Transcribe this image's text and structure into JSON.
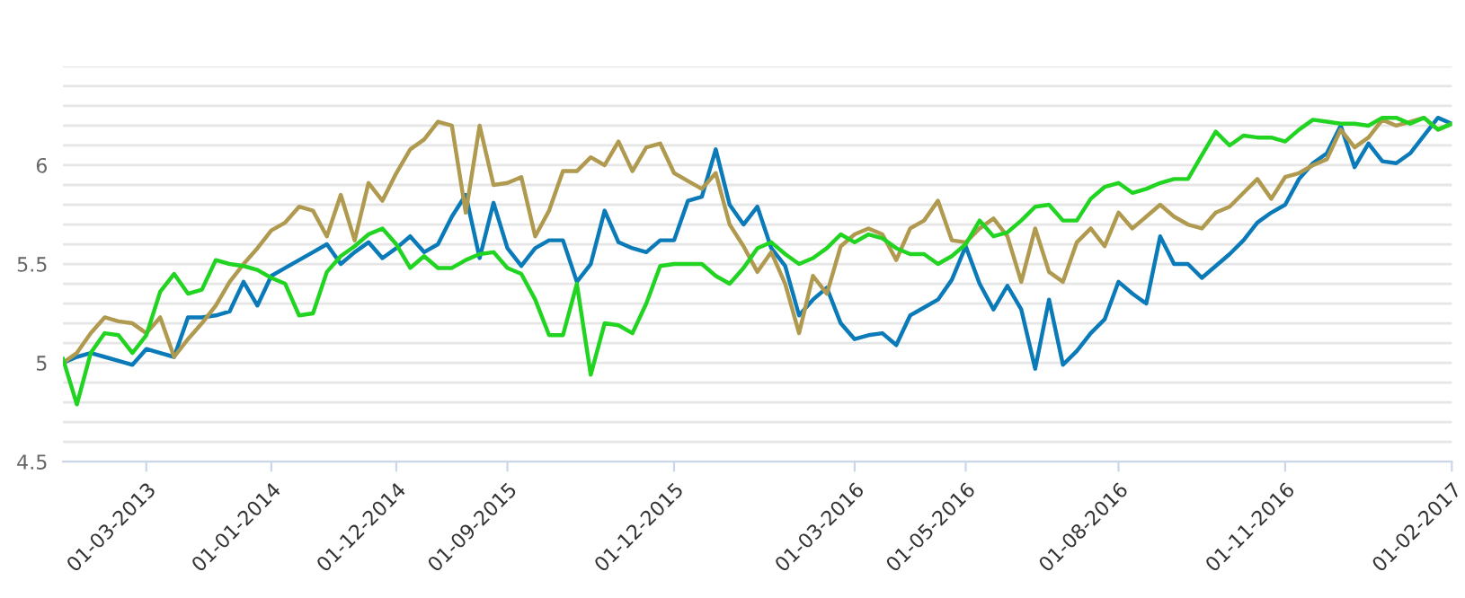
{
  "chart_data": {
    "type": "line",
    "categories": [
      null,
      null,
      null,
      null,
      null,
      null,
      "01-03-2013",
      null,
      null,
      null,
      null,
      null,
      null,
      null,
      null,
      "01-01-2014",
      null,
      null,
      null,
      null,
      null,
      null,
      null,
      null,
      "01-12-2014",
      null,
      null,
      null,
      null,
      null,
      null,
      null,
      "01-09-2015",
      null,
      null,
      null,
      null,
      null,
      null,
      null,
      null,
      null,
      null,
      null,
      "01-12-2015",
      null,
      null,
      null,
      null,
      null,
      null,
      null,
      null,
      null,
      null,
      null,
      null,
      "01-03-2016",
      null,
      null,
      null,
      null,
      null,
      null,
      null,
      "01-05-2016",
      null,
      null,
      null,
      null,
      null,
      null,
      null,
      null,
      null,
      null,
      "01-08-2016",
      null,
      null,
      null,
      null,
      null,
      null,
      null,
      null,
      null,
      null,
      null,
      "01-11-2016",
      null,
      null,
      null,
      null,
      null,
      null,
      null,
      null,
      null,
      null,
      null,
      "01-02-2017"
    ],
    "ylim": [
      4.5,
      6.5
    ],
    "yticks": [
      4.5,
      {
        "value": 4.6,
        "label": null
      },
      {
        "value": 4.7,
        "label": null
      },
      {
        "value": 4.8,
        "label": null
      },
      {
        "value": 4.9,
        "label": null
      },
      5,
      {
        "value": 5.1,
        "label": null
      },
      {
        "value": 5.2,
        "label": null
      },
      {
        "value": 5.3,
        "label": null
      },
      {
        "value": 5.4,
        "label": null
      },
      5.5,
      {
        "value": 5.6,
        "label": null
      },
      {
        "value": 5.7,
        "label": null
      },
      {
        "value": 5.8,
        "label": null
      },
      {
        "value": 5.9,
        "label": null
      },
      6,
      {
        "value": 6.1,
        "label": null
      },
      {
        "value": 6.2,
        "label": null
      },
      {
        "value": 6.3,
        "label": null
      },
      {
        "value": 6.4,
        "label": null
      },
      {
        "value": 6.5,
        "label": null
      }
    ],
    "grid": "y",
    "marker": "none",
    "line_style": "solid",
    "series": [
      {
        "color": "#0a7bb8",
        "values": [
          5.0,
          5.03,
          5.05,
          5.03,
          5.01,
          4.99,
          5.07,
          5.05,
          5.03,
          5.23,
          5.23,
          5.24,
          5.26,
          5.41,
          5.29,
          5.44,
          5.48,
          5.52,
          5.56,
          5.6,
          5.5,
          5.56,
          5.61,
          5.53,
          5.58,
          5.64,
          5.56,
          5.6,
          5.74,
          5.85,
          5.53,
          5.81,
          5.58,
          5.49,
          5.58,
          5.62,
          5.62,
          5.41,
          5.5,
          5.77,
          5.61,
          5.58,
          5.56,
          5.62,
          5.62,
          5.82,
          5.84,
          6.08,
          5.8,
          5.7,
          5.79,
          5.58,
          5.49,
          5.24,
          5.32,
          5.38,
          5.2,
          5.12,
          5.14,
          5.15,
          5.09,
          5.24,
          5.28,
          5.32,
          5.42,
          5.59,
          5.4,
          5.27,
          5.39,
          5.27,
          4.97,
          5.32,
          4.99,
          5.06,
          5.15,
          5.22,
          5.41,
          5.35,
          5.3,
          5.64,
          5.5,
          5.5,
          5.43,
          5.49,
          5.55,
          5.62,
          5.71,
          5.76,
          5.8,
          5.93,
          6.01,
          6.06,
          6.2,
          5.99,
          6.11,
          6.02,
          6.01,
          6.06,
          6.15,
          6.24,
          6.21
        ]
      },
      {
        "color": "#b09a50",
        "values": [
          5.0,
          5.05,
          5.15,
          5.23,
          5.21,
          5.2,
          5.15,
          5.23,
          5.03,
          5.12,
          5.2,
          5.29,
          5.41,
          5.5,
          5.58,
          5.67,
          5.71,
          5.79,
          5.77,
          5.64,
          5.85,
          5.62,
          5.91,
          5.82,
          5.96,
          6.08,
          6.13,
          6.22,
          6.2,
          5.76,
          6.2,
          5.9,
          5.91,
          5.94,
          5.64,
          5.77,
          5.97,
          5.97,
          6.04,
          6.0,
          6.12,
          5.97,
          6.09,
          6.11,
          5.96,
          5.92,
          5.88,
          5.96,
          5.7,
          5.59,
          5.46,
          5.56,
          5.4,
          5.15,
          5.44,
          5.35,
          5.59,
          5.65,
          5.68,
          5.65,
          5.52,
          5.68,
          5.72,
          5.82,
          5.62,
          5.61,
          5.68,
          5.73,
          5.64,
          5.41,
          5.68,
          5.46,
          5.41,
          5.61,
          5.68,
          5.59,
          5.76,
          5.68,
          5.74,
          5.8,
          5.74,
          5.7,
          5.68,
          5.76,
          5.79,
          5.86,
          5.93,
          5.83,
          5.94,
          5.96,
          6.0,
          6.03,
          6.18,
          6.09,
          6.14,
          6.23,
          6.2,
          6.22,
          6.24,
          6.18,
          6.21
        ]
      },
      {
        "color": "#22d422",
        "values": [
          5.02,
          4.79,
          5.05,
          5.15,
          5.14,
          5.05,
          5.14,
          5.36,
          5.45,
          5.35,
          5.37,
          5.52,
          5.5,
          5.49,
          5.47,
          5.43,
          5.4,
          5.24,
          5.25,
          5.46,
          5.54,
          5.59,
          5.65,
          5.68,
          5.6,
          5.48,
          5.54,
          5.48,
          5.48,
          5.52,
          5.55,
          5.56,
          5.48,
          5.45,
          5.32,
          5.14,
          5.14,
          5.4,
          4.94,
          5.2,
          5.19,
          5.15,
          5.3,
          5.49,
          5.5,
          5.5,
          5.5,
          5.44,
          5.4,
          5.48,
          5.58,
          5.61,
          5.55,
          5.5,
          5.53,
          5.58,
          5.65,
          5.61,
          5.65,
          5.63,
          5.58,
          5.55,
          5.55,
          5.5,
          5.54,
          5.6,
          5.72,
          5.64,
          5.66,
          5.72,
          5.79,
          5.8,
          5.72,
          5.72,
          5.83,
          5.89,
          5.91,
          5.86,
          5.88,
          5.91,
          5.93,
          5.93,
          6.05,
          6.17,
          6.1,
          6.15,
          6.14,
          6.14,
          6.12,
          6.18,
          6.23,
          6.22,
          6.21,
          6.21,
          6.2,
          6.24,
          6.24,
          6.21,
          6.24,
          6.18,
          6.21
        ]
      }
    ]
  }
}
